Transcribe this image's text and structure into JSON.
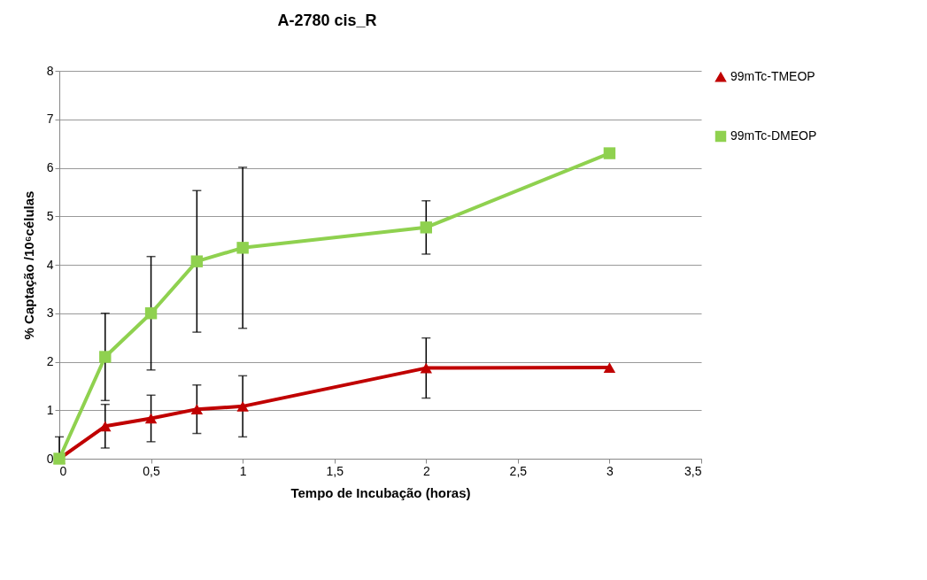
{
  "chart_data": {
    "type": "line",
    "title": "A-2780 cis_R",
    "xlabel": "Tempo de Incubação (horas)",
    "ylabel": "% Captação /10⁶células",
    "x": [
      0,
      0.25,
      0.5,
      0.75,
      1,
      2,
      3
    ],
    "series": [
      {
        "name": "99mTc-TMEOP",
        "color": "#c00000",
        "marker": "triangle",
        "values": [
          0,
          0.67,
          0.83,
          1.02,
          1.08,
          1.87,
          1.88
        ],
        "errors": [
          [
            0,
            0.45
          ],
          0.45,
          0.48,
          0.5,
          0.63,
          0.62,
          null
        ]
      },
      {
        "name": "99mTc-DMEOP",
        "color": "#8fd14f",
        "marker": "square",
        "values": [
          0,
          2.1,
          3.0,
          4.07,
          4.35,
          4.77,
          6.3
        ],
        "errors": [
          null,
          0.9,
          1.17,
          1.46,
          1.66,
          0.55,
          null
        ]
      }
    ],
    "xlim": [
      0,
      3.5
    ],
    "xticks": [
      0,
      {
        "value": 0.5,
        "label": "0,5"
      },
      1,
      {
        "value": 1.5,
        "label": "1,5"
      },
      2,
      {
        "value": 2.5,
        "label": "2,5"
      },
      3,
      {
        "value": 3.5,
        "label": "3,5"
      }
    ],
    "ylim": [
      0,
      8
    ],
    "yticks": [
      0,
      1,
      2,
      3,
      4,
      5,
      6,
      7,
      8
    ],
    "grid": "y",
    "legend": "right",
    "line_style": "solid"
  }
}
